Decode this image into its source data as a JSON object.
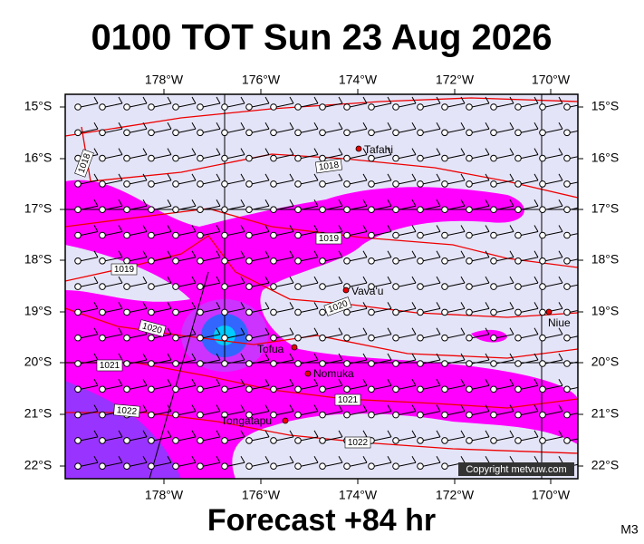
{
  "header": {
    "title": "0100 TOT Sun 23 Aug 2026"
  },
  "map": {
    "lon_labels": [
      "178°W",
      "176°W",
      "174°W",
      "172°W",
      "170°W"
    ],
    "lat_labels": [
      "15°S",
      "16°S",
      "17°S",
      "18°S",
      "19°S",
      "20°S",
      "21°S",
      "22°S"
    ],
    "places": [
      "Tafahi",
      "Vava'u",
      "Niue",
      "Tofua",
      "Nomuka",
      "Tongatapu"
    ],
    "isobar_labels": [
      "1018",
      "1018",
      "1019",
      "1019",
      "1020",
      "1020",
      "1021",
      "1021",
      "1022",
      "1022"
    ],
    "copyright": "Copyright metvuw.com"
  },
  "footer": {
    "forecast": "Forecast +84 hr",
    "code": "M3"
  }
}
